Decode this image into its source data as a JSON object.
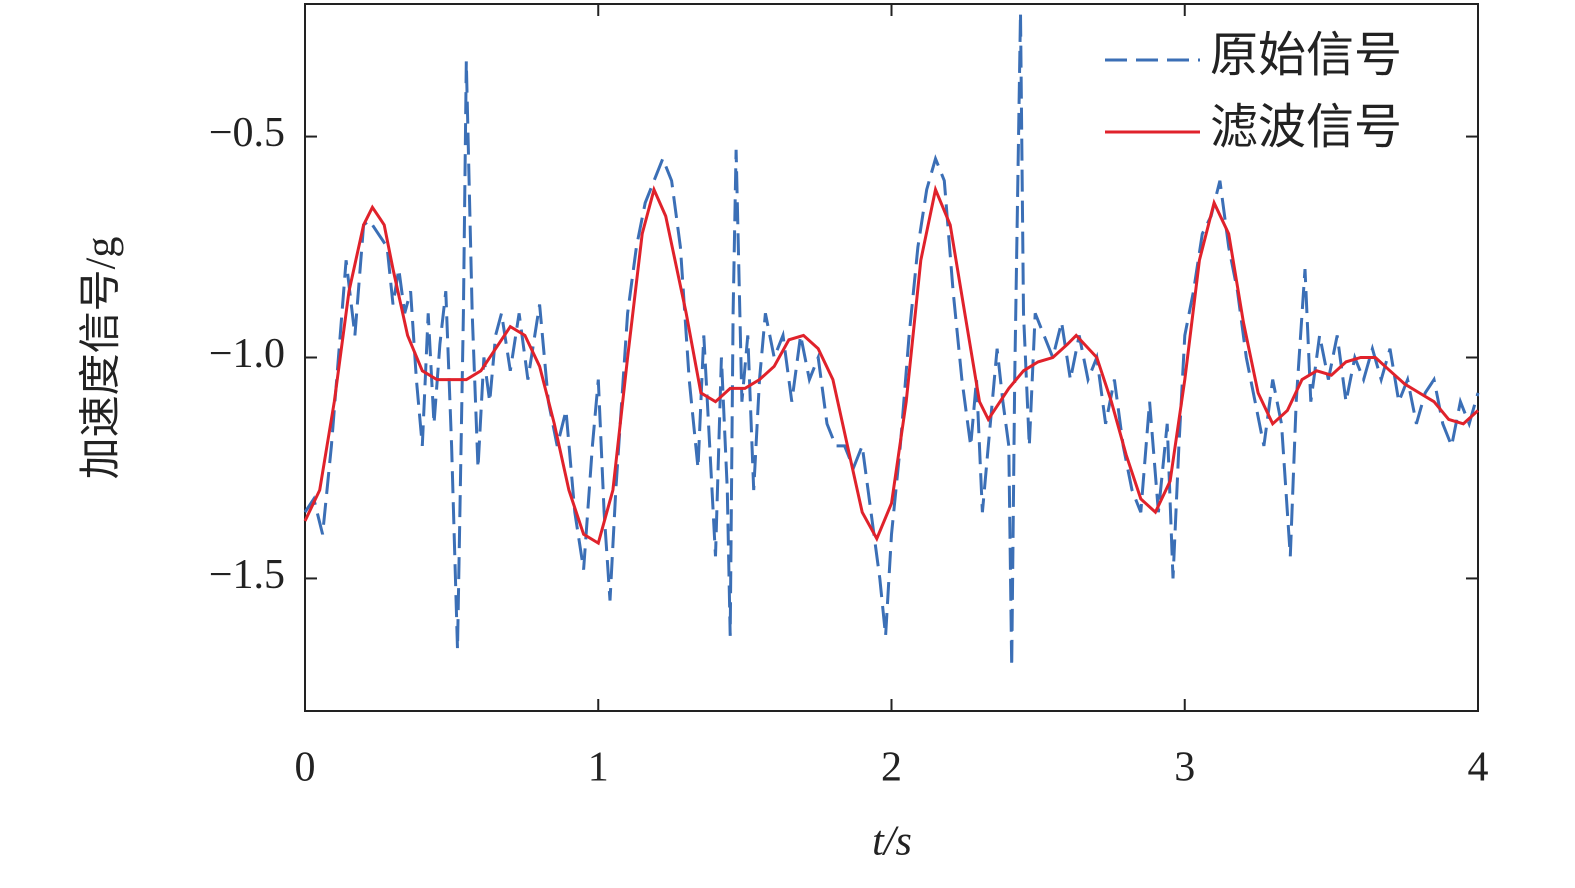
{
  "chart_data": {
    "type": "line",
    "xlabel": "t/s",
    "ylabel": "加速度信号/g",
    "xlim": [
      0,
      4
    ],
    "ylim": [
      -1.8,
      -0.2
    ],
    "xticks": [
      0,
      1,
      2,
      3,
      4
    ],
    "yticks": [
      {
        "value": -0.5,
        "label": "−0.5"
      },
      {
        "value": -1.0,
        "label": "−1.0"
      },
      {
        "value": -1.5,
        "label": "−1.5"
      }
    ],
    "legend": "upper right",
    "series": [
      {
        "name": "原始信号",
        "color": "#3b6fb6",
        "dash": true,
        "x": [
          0,
          0.03,
          0.06,
          0.09,
          0.12,
          0.14,
          0.17,
          0.2,
          0.22,
          0.25,
          0.28,
          0.3,
          0.32,
          0.34,
          0.36,
          0.38,
          0.4,
          0.42,
          0.44,
          0.46,
          0.48,
          0.5,
          0.52,
          0.54,
          0.55,
          0.57,
          0.59,
          0.61,
          0.63,
          0.65,
          0.67,
          0.7,
          0.73,
          0.76,
          0.8,
          0.83,
          0.86,
          0.89,
          0.92,
          0.95,
          0.98,
          1.0,
          1.02,
          1.04,
          1.06,
          1.08,
          1.1,
          1.13,
          1.16,
          1.19,
          1.22,
          1.25,
          1.28,
          1.31,
          1.34,
          1.36,
          1.38,
          1.4,
          1.42,
          1.44,
          1.45,
          1.46,
          1.47,
          1.49,
          1.51,
          1.53,
          1.55,
          1.57,
          1.6,
          1.63,
          1.66,
          1.69,
          1.72,
          1.75,
          1.78,
          1.81,
          1.84,
          1.87,
          1.9,
          1.93,
          1.96,
          1.98,
          2.0,
          2.03,
          2.06,
          2.09,
          2.12,
          2.15,
          2.18,
          2.21,
          2.24,
          2.27,
          2.29,
          2.31,
          2.33,
          2.36,
          2.38,
          2.4,
          2.41,
          2.42,
          2.44,
          2.45,
          2.47,
          2.49,
          2.52,
          2.55,
          2.58,
          2.61,
          2.64,
          2.67,
          2.7,
          2.73,
          2.76,
          2.79,
          2.82,
          2.85,
          2.88,
          2.91,
          2.94,
          2.96,
          2.98,
          3.0,
          3.03,
          3.06,
          3.09,
          3.12,
          3.15,
          3.18,
          3.21,
          3.24,
          3.27,
          3.3,
          3.33,
          3.36,
          3.38,
          3.41,
          3.43,
          3.46,
          3.49,
          3.52,
          3.55,
          3.58,
          3.61,
          3.64,
          3.67,
          3.7,
          3.73,
          3.76,
          3.79,
          3.82,
          3.85,
          3.88,
          3.91,
          3.94,
          3.97,
          4.0
        ],
        "values": [
          -1.35,
          -1.32,
          -1.4,
          -1.2,
          -0.95,
          -0.78,
          -0.95,
          -0.7,
          -0.69,
          -0.72,
          -0.75,
          -0.88,
          -0.8,
          -0.9,
          -0.85,
          -1.05,
          -1.2,
          -0.9,
          -1.15,
          -0.97,
          -0.85,
          -1.2,
          -1.66,
          -0.9,
          -0.33,
          -0.9,
          -1.25,
          -1.0,
          -1.1,
          -0.95,
          -0.9,
          -1.03,
          -0.9,
          -1.05,
          -0.88,
          -1.1,
          -1.2,
          -1.12,
          -1.35,
          -1.48,
          -1.2,
          -1.05,
          -1.35,
          -1.55,
          -1.3,
          -1.1,
          -0.9,
          -0.75,
          -0.65,
          -0.6,
          -0.55,
          -0.6,
          -0.75,
          -1.05,
          -1.25,
          -0.95,
          -1.2,
          -1.45,
          -1.0,
          -1.3,
          -1.63,
          -0.9,
          -0.53,
          -1.1,
          -0.95,
          -1.3,
          -1.05,
          -0.9,
          -1.0,
          -0.95,
          -1.1,
          -0.95,
          -1.05,
          -1.0,
          -1.15,
          -1.2,
          -1.2,
          -1.25,
          -1.2,
          -1.35,
          -1.5,
          -1.63,
          -1.4,
          -1.2,
          -0.95,
          -0.75,
          -0.62,
          -0.55,
          -0.6,
          -0.85,
          -1.05,
          -1.2,
          -1.05,
          -1.35,
          -1.2,
          -0.98,
          -1.1,
          -1.2,
          -1.7,
          -1.05,
          -0.22,
          -0.9,
          -1.2,
          -0.9,
          -0.95,
          -1.0,
          -0.92,
          -1.05,
          -0.95,
          -1.05,
          -1.0,
          -1.15,
          -1.05,
          -1.2,
          -1.3,
          -1.35,
          -1.1,
          -1.35,
          -1.15,
          -1.5,
          -1.2,
          -0.95,
          -0.85,
          -0.72,
          -0.68,
          -0.6,
          -0.75,
          -0.85,
          -1.0,
          -1.1,
          -1.2,
          -1.05,
          -1.15,
          -1.45,
          -1.1,
          -0.8,
          -1.1,
          -0.95,
          -1.05,
          -0.95,
          -1.1,
          -1.0,
          -1.05,
          -0.98,
          -1.05,
          -0.98,
          -1.1,
          -1.05,
          -1.15,
          -1.08,
          -1.05,
          -1.15,
          -1.2,
          -1.1,
          -1.15,
          -1.08
        ]
      },
      {
        "name": "滤波信号",
        "color": "#e0222b",
        "dash": false,
        "x": [
          0,
          0.05,
          0.1,
          0.15,
          0.2,
          0.23,
          0.27,
          0.3,
          0.35,
          0.4,
          0.45,
          0.5,
          0.55,
          0.6,
          0.65,
          0.7,
          0.75,
          0.8,
          0.85,
          0.9,
          0.95,
          1.0,
          1.05,
          1.1,
          1.15,
          1.19,
          1.23,
          1.3,
          1.35,
          1.4,
          1.45,
          1.5,
          1.55,
          1.6,
          1.65,
          1.7,
          1.75,
          1.8,
          1.85,
          1.9,
          1.95,
          2.0,
          2.05,
          2.1,
          2.15,
          2.2,
          2.25,
          2.3,
          2.33,
          2.4,
          2.45,
          2.5,
          2.55,
          2.6,
          2.63,
          2.7,
          2.75,
          2.8,
          2.85,
          2.9,
          2.95,
          3.0,
          3.05,
          3.1,
          3.15,
          3.2,
          3.25,
          3.3,
          3.35,
          3.4,
          3.45,
          3.5,
          3.55,
          3.6,
          3.65,
          3.7,
          3.75,
          3.8,
          3.85,
          3.9,
          3.95,
          4.0
        ],
        "values": [
          -1.37,
          -1.3,
          -1.1,
          -0.85,
          -0.7,
          -0.66,
          -0.7,
          -0.8,
          -0.95,
          -1.03,
          -1.05,
          -1.05,
          -1.05,
          -1.03,
          -0.98,
          -0.93,
          -0.95,
          -1.02,
          -1.15,
          -1.3,
          -1.4,
          -1.42,
          -1.3,
          -1.0,
          -0.72,
          -0.62,
          -0.68,
          -0.9,
          -1.08,
          -1.1,
          -1.07,
          -1.07,
          -1.05,
          -1.02,
          -0.96,
          -0.95,
          -0.98,
          -1.05,
          -1.2,
          -1.35,
          -1.41,
          -1.33,
          -1.1,
          -0.78,
          -0.62,
          -0.7,
          -0.9,
          -1.1,
          -1.14,
          -1.07,
          -1.03,
          -1.01,
          -1.0,
          -0.97,
          -0.95,
          -1.0,
          -1.1,
          -1.22,
          -1.32,
          -1.35,
          -1.28,
          -1.05,
          -0.78,
          -0.65,
          -0.72,
          -0.92,
          -1.08,
          -1.15,
          -1.12,
          -1.05,
          -1.03,
          -1.04,
          -1.01,
          -1.0,
          -1.0,
          -1.03,
          -1.06,
          -1.08,
          -1.1,
          -1.14,
          -1.15,
          -1.12
        ]
      }
    ]
  }
}
